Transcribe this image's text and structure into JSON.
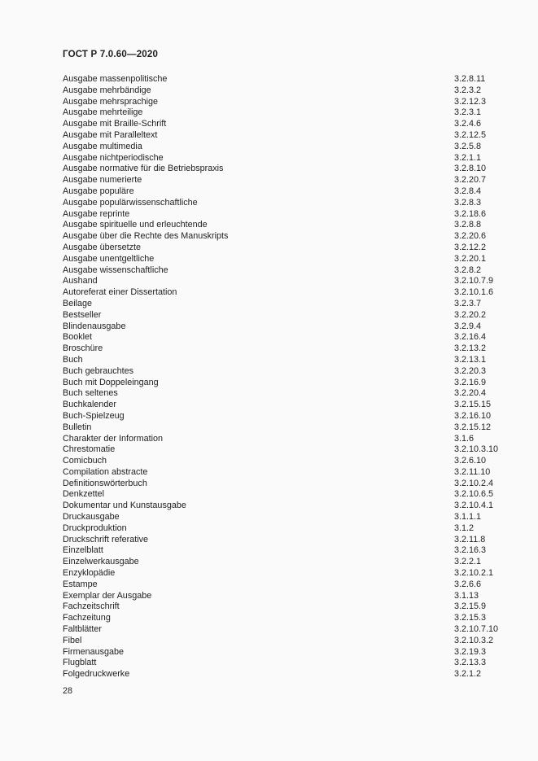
{
  "page": {
    "header": "ГОСТ Р 7.0.60—2020",
    "page_number": "28"
  },
  "index": {
    "entries": [
      {
        "term": "Ausgabe massenpolitische",
        "ref": "3.2.8.11"
      },
      {
        "term": "Ausgabe mehrbändige",
        "ref": "3.2.3.2"
      },
      {
        "term": "Ausgabe mehrsprachige",
        "ref": "3.2.12.3"
      },
      {
        "term": "Ausgabe mehrteilige",
        "ref": "3.2.3.1"
      },
      {
        "term": "Ausgabe mit Braille-Schrift",
        "ref": "3.2.4.6"
      },
      {
        "term": "Ausgabe mit Paralleltext",
        "ref": "3.2.12.5"
      },
      {
        "term": "Ausgabe multimedia",
        "ref": "3.2.5.8"
      },
      {
        "term": "Ausgabe nichtperiodische",
        "ref": "3.2.1.1"
      },
      {
        "term": "Ausgabe normative für die Betriebspraxis",
        "ref": "3.2.8.10"
      },
      {
        "term": "Ausgabe numerierte",
        "ref": "3.2.20.7"
      },
      {
        "term": "Ausgabe populäre",
        "ref": "3.2.8.4"
      },
      {
        "term": "Ausgabe populärwissenschaftliche",
        "ref": "3.2.8.3"
      },
      {
        "term": "Ausgabe reprinte",
        "ref": "3.2.18.6"
      },
      {
        "term": "Ausgabe spirituelle und erleuchtende",
        "ref": "3.2.8.8"
      },
      {
        "term": "Ausgabe über die Rechte des Manuskripts",
        "ref": "3.2.20.6"
      },
      {
        "term": "Ausgabe übersetzte",
        "ref": "3.2.12.2"
      },
      {
        "term": "Ausgabe unentgeltliche",
        "ref": "3.2.20.1"
      },
      {
        "term": "Ausgabe wissenschaftliche",
        "ref": "3.2.8.2"
      },
      {
        "term": "Aushand",
        "ref": "3.2.10.7.9"
      },
      {
        "term": "Autoreferat einer Dissertation",
        "ref": "3.2.10.1.6"
      },
      {
        "term": "Beilage",
        "ref": "3.2.3.7"
      },
      {
        "term": "Bestseller",
        "ref": "3.2.20.2"
      },
      {
        "term": "Blindenausgabe",
        "ref": "3.2.9.4"
      },
      {
        "term": "Booklet",
        "ref": "3.2.16.4"
      },
      {
        "term": "Broschüre",
        "ref": "3.2.13.2"
      },
      {
        "term": "Buch",
        "ref": "3.2.13.1"
      },
      {
        "term": "Buch gebrauchtes",
        "ref": "3.2.20.3"
      },
      {
        "term": "Buch mit Doppeleingang",
        "ref": "3.2.16.9"
      },
      {
        "term": "Buch seltenes",
        "ref": "3.2.20.4"
      },
      {
        "term": "Buchkalender",
        "ref": "3.2.15.15"
      },
      {
        "term": "Buch-Spielzeug",
        "ref": "3.2.16.10"
      },
      {
        "term": "Bulletin",
        "ref": "3.2.15.12"
      },
      {
        "term": "Charakter der Information",
        "ref": "3.1.6"
      },
      {
        "term": "Chrestomatie",
        "ref": "3.2.10.3.10"
      },
      {
        "term": "Comicbuch",
        "ref": "3.2.6.10"
      },
      {
        "term": "Compilation abstracte",
        "ref": "3.2.11.10"
      },
      {
        "term": "Definitionswörterbuch",
        "ref": "3.2.10.2.4"
      },
      {
        "term": "Denkzettel",
        "ref": "3.2.10.6.5"
      },
      {
        "term": "Dokumentar und Kunstausgabe",
        "ref": "3.2.10.4.1"
      },
      {
        "term": "Druckausgabe",
        "ref": "3.1.1.1"
      },
      {
        "term": "Druckproduktion",
        "ref": "3.1.2"
      },
      {
        "term": "Druckschrift referative",
        "ref": "3.2.11.8"
      },
      {
        "term": "Einzelblatt",
        "ref": "3.2.16.3"
      },
      {
        "term": "Einzelwerkausgabe",
        "ref": "3.2.2.1"
      },
      {
        "term": "Enzyklopädie",
        "ref": "3.2.10.2.1"
      },
      {
        "term": "Estampe",
        "ref": "3.2.6.6"
      },
      {
        "term": "Exemplar der Ausgabe",
        "ref": "3.1.13"
      },
      {
        "term": "Fachzeitschrift",
        "ref": "3.2.15.9"
      },
      {
        "term": "Fachzeitung",
        "ref": "3.2.15.3"
      },
      {
        "term": "Faltblätter",
        "ref": "3.2.10.7.10"
      },
      {
        "term": "Fibel",
        "ref": "3.2.10.3.2"
      },
      {
        "term": "Firmenausgabe",
        "ref": "3.2.19.3"
      },
      {
        "term": "Flugblatt",
        "ref": "3.2.13.3"
      },
      {
        "term": "Folgedruckwerke",
        "ref": "3.2.1.2"
      }
    ]
  }
}
